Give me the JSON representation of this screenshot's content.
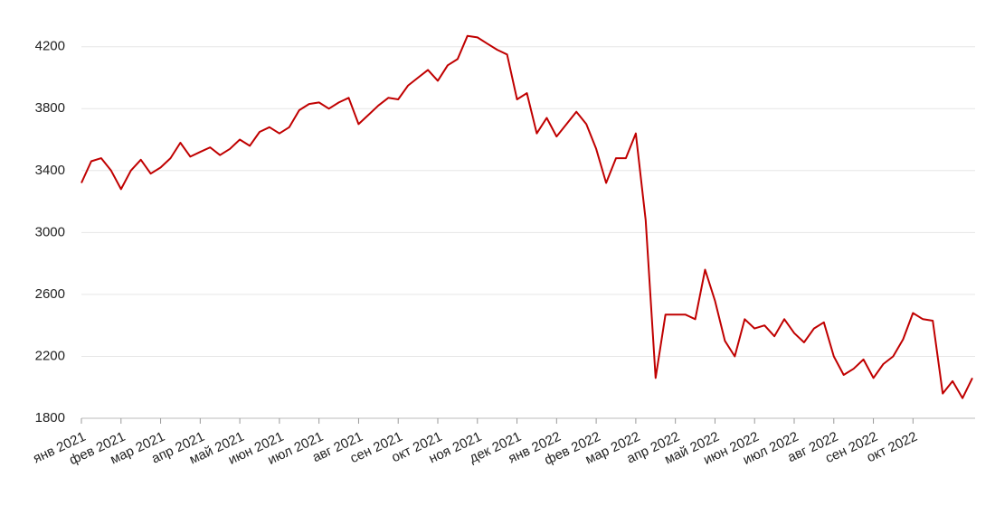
{
  "chart_data": {
    "type": "line",
    "color": "#c00000",
    "categories": [
      "янв 2021",
      null,
      null,
      null,
      "фев 2021",
      null,
      null,
      null,
      "мар 2021",
      null,
      null,
      null,
      "апр 2021",
      null,
      null,
      null,
      "май 2021",
      null,
      null,
      null,
      "июн 2021",
      null,
      null,
      null,
      "июл 2021",
      null,
      null,
      null,
      "авг 2021",
      null,
      null,
      null,
      "сен 2021",
      null,
      null,
      null,
      "окт 2021",
      null,
      null,
      null,
      "ноя 2021",
      null,
      null,
      null,
      "дек 2021",
      null,
      null,
      null,
      "янв 2022",
      null,
      null,
      null,
      "фев 2022",
      null,
      null,
      null,
      "мар 2022",
      null,
      null,
      null,
      "апр 2022",
      null,
      null,
      null,
      "май 2022",
      null,
      null,
      null,
      "июн 2022",
      null,
      null,
      null,
      "июл 2022",
      null,
      null,
      null,
      "авг 2022",
      null,
      null,
      null,
      "сен 2022",
      null,
      null,
      null,
      "окт 2022",
      null,
      null,
      null,
      null,
      null,
      null
    ],
    "values": [
      3320,
      3460,
      3480,
      3400,
      3280,
      3400,
      3470,
      3380,
      3420,
      3480,
      3580,
      3490,
      3520,
      3550,
      3500,
      3540,
      3600,
      3560,
      3650,
      3680,
      3640,
      3680,
      3790,
      3830,
      3840,
      3800,
      3840,
      3870,
      3700,
      3760,
      3820,
      3870,
      3860,
      3950,
      4000,
      4050,
      3980,
      4080,
      4120,
      4270,
      4260,
      4220,
      4180,
      4150,
      3860,
      3900,
      3640,
      3740,
      3620,
      3700,
      3780,
      3700,
      3540,
      3320,
      3480,
      3480,
      3640,
      3080,
      2060,
      2470,
      2470,
      2470,
      2440,
      2760,
      2560,
      2300,
      2200,
      2440,
      2380,
      2400,
      2330,
      2440,
      2350,
      2290,
      2380,
      2420,
      2200,
      2080,
      2120,
      2180,
      2060,
      2150,
      2200,
      2310,
      2480,
      2440,
      2430,
      1960,
      2040,
      1930,
      2060
    ],
    "ylim": [
      1800,
      4280
    ],
    "yticks": [
      1800,
      2200,
      2600,
      3000,
      3400,
      3800,
      4200
    ],
    "grid": true
  }
}
